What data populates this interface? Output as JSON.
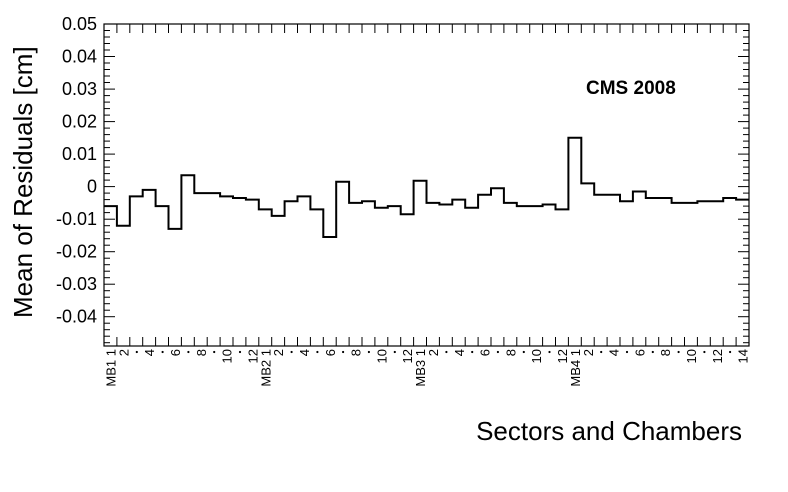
{
  "chart_data": {
    "type": "step",
    "title": "",
    "annotation": "CMS 2008",
    "xlabel": "Sectors and Chambers",
    "ylabel": "Mean of Residuals [cm]",
    "ylim": [
      -0.049,
      0.05
    ],
    "grid": false,
    "y_ticks": [
      "0.05",
      "0.04",
      "0.03",
      "0.02",
      "0.01",
      "0",
      "-0.01",
      "-0.02",
      "-0.03",
      "-0.04"
    ],
    "y_tick_values": [
      0.05,
      0.04,
      0.03,
      0.02,
      0.01,
      0,
      -0.01,
      -0.02,
      -0.03,
      -0.04
    ],
    "bin_labels": [
      "MB1 1",
      "2",
      "",
      "4",
      "",
      "6",
      "",
      "8",
      "",
      "10",
      "",
      "12",
      "MB2 1",
      "2",
      "",
      "4",
      "",
      "6",
      "",
      "8",
      "",
      "10",
      "",
      "12",
      "MB3 1",
      "2",
      "",
      "4",
      "",
      "6",
      "",
      "8",
      "",
      "10",
      "",
      "12",
      "MB4 1",
      "2",
      "",
      "4",
      "",
      "6",
      "",
      "8",
      "",
      "10",
      "",
      "12",
      "",
      "14"
    ],
    "values": [
      -0.006,
      -0.012,
      -0.003,
      -0.001,
      -0.006,
      -0.013,
      0.0035,
      -0.002,
      -0.002,
      -0.003,
      -0.0035,
      -0.004,
      -0.007,
      -0.009,
      -0.0045,
      -0.003,
      -0.007,
      -0.0155,
      0.0015,
      -0.005,
      -0.0045,
      -0.0065,
      -0.006,
      -0.0085,
      0.0018,
      -0.005,
      -0.0055,
      -0.004,
      -0.0065,
      -0.0025,
      -0.0005,
      -0.005,
      -0.006,
      -0.006,
      -0.0055,
      -0.007,
      0.015,
      0.001,
      -0.0025,
      -0.0025,
      -0.0045,
      -0.0015,
      -0.0035,
      -0.0035,
      -0.005,
      -0.005,
      -0.0045,
      -0.0045,
      -0.0035,
      -0.004
    ]
  }
}
